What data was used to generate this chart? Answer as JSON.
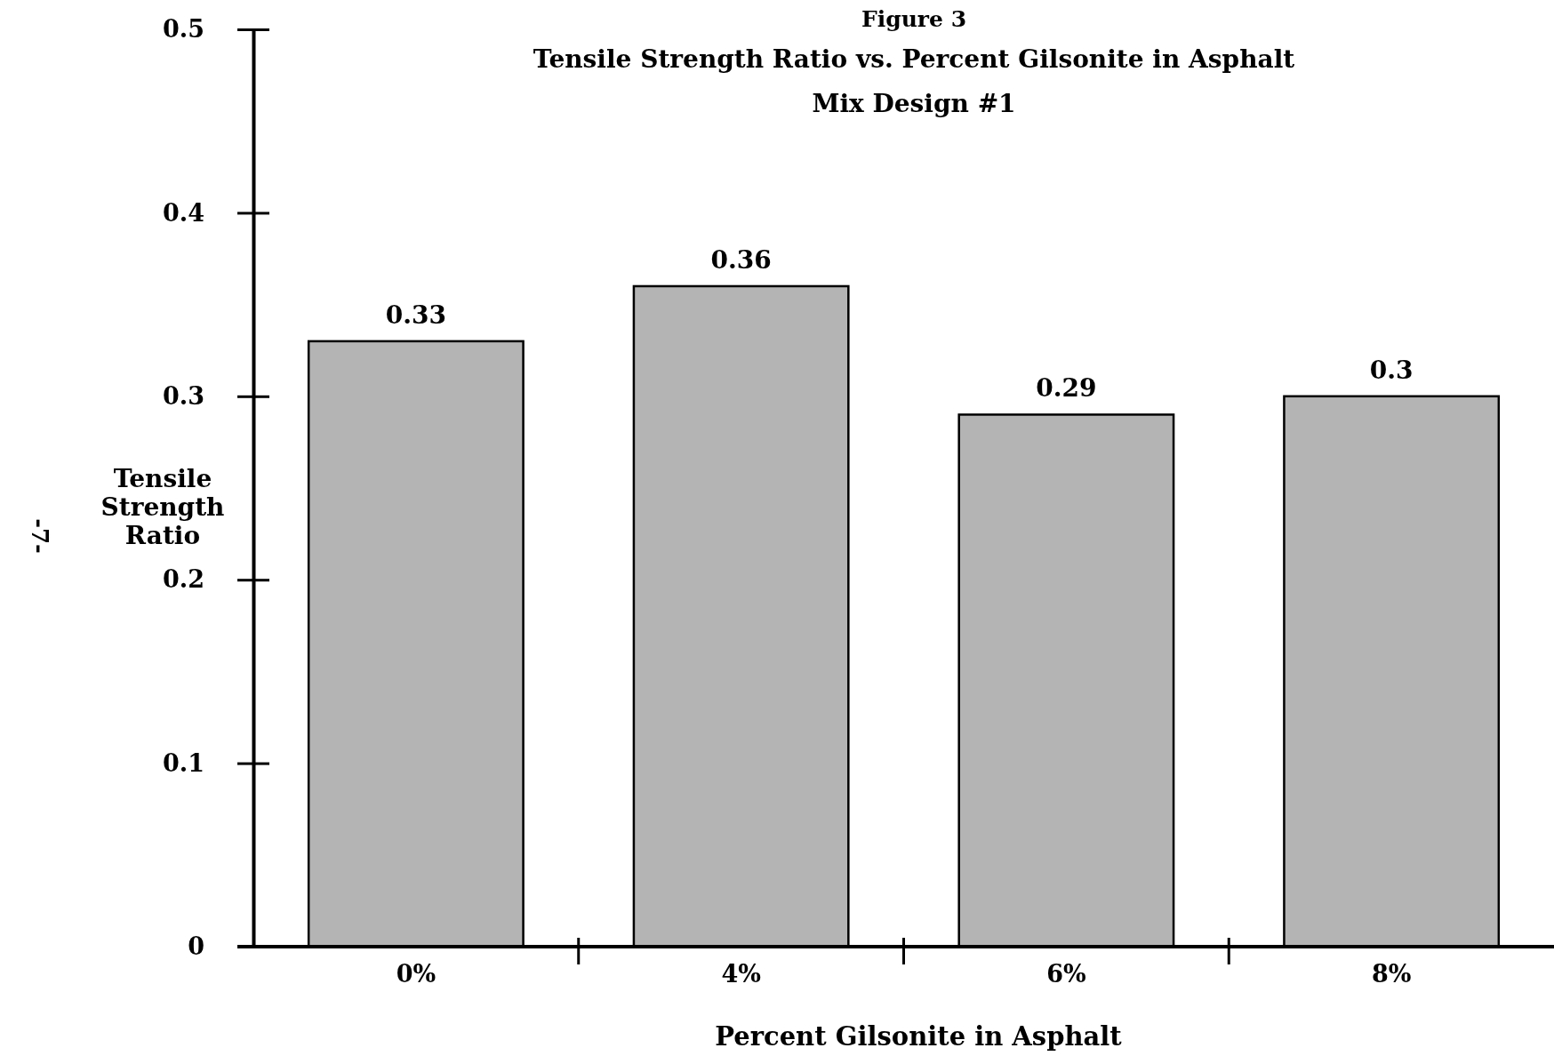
{
  "chart_data": {
    "type": "bar",
    "title": "Figure 3",
    "subtitle": "Tensile Strength Ratio vs. Percent Gilsonite in Asphalt\nMix Design #1",
    "xlabel": "Percent Gilsonite in Asphalt",
    "ylabel": "Tensile\nStrength\nRatio",
    "categories": [
      "0%",
      "4%",
      "6%",
      "8%"
    ],
    "values": [
      0.33,
      0.36,
      0.29,
      0.3
    ],
    "color": "#b4b4b4",
    "value_labels": [
      "0.33",
      "0.36",
      "0.29",
      "0.3"
    ],
    "ylim": [
      0,
      0.5
    ],
    "yticks": [
      0,
      0.1,
      0.2,
      0.3,
      0.4,
      0.5
    ],
    "grid": false,
    "annotations": [
      "-7-"
    ]
  }
}
